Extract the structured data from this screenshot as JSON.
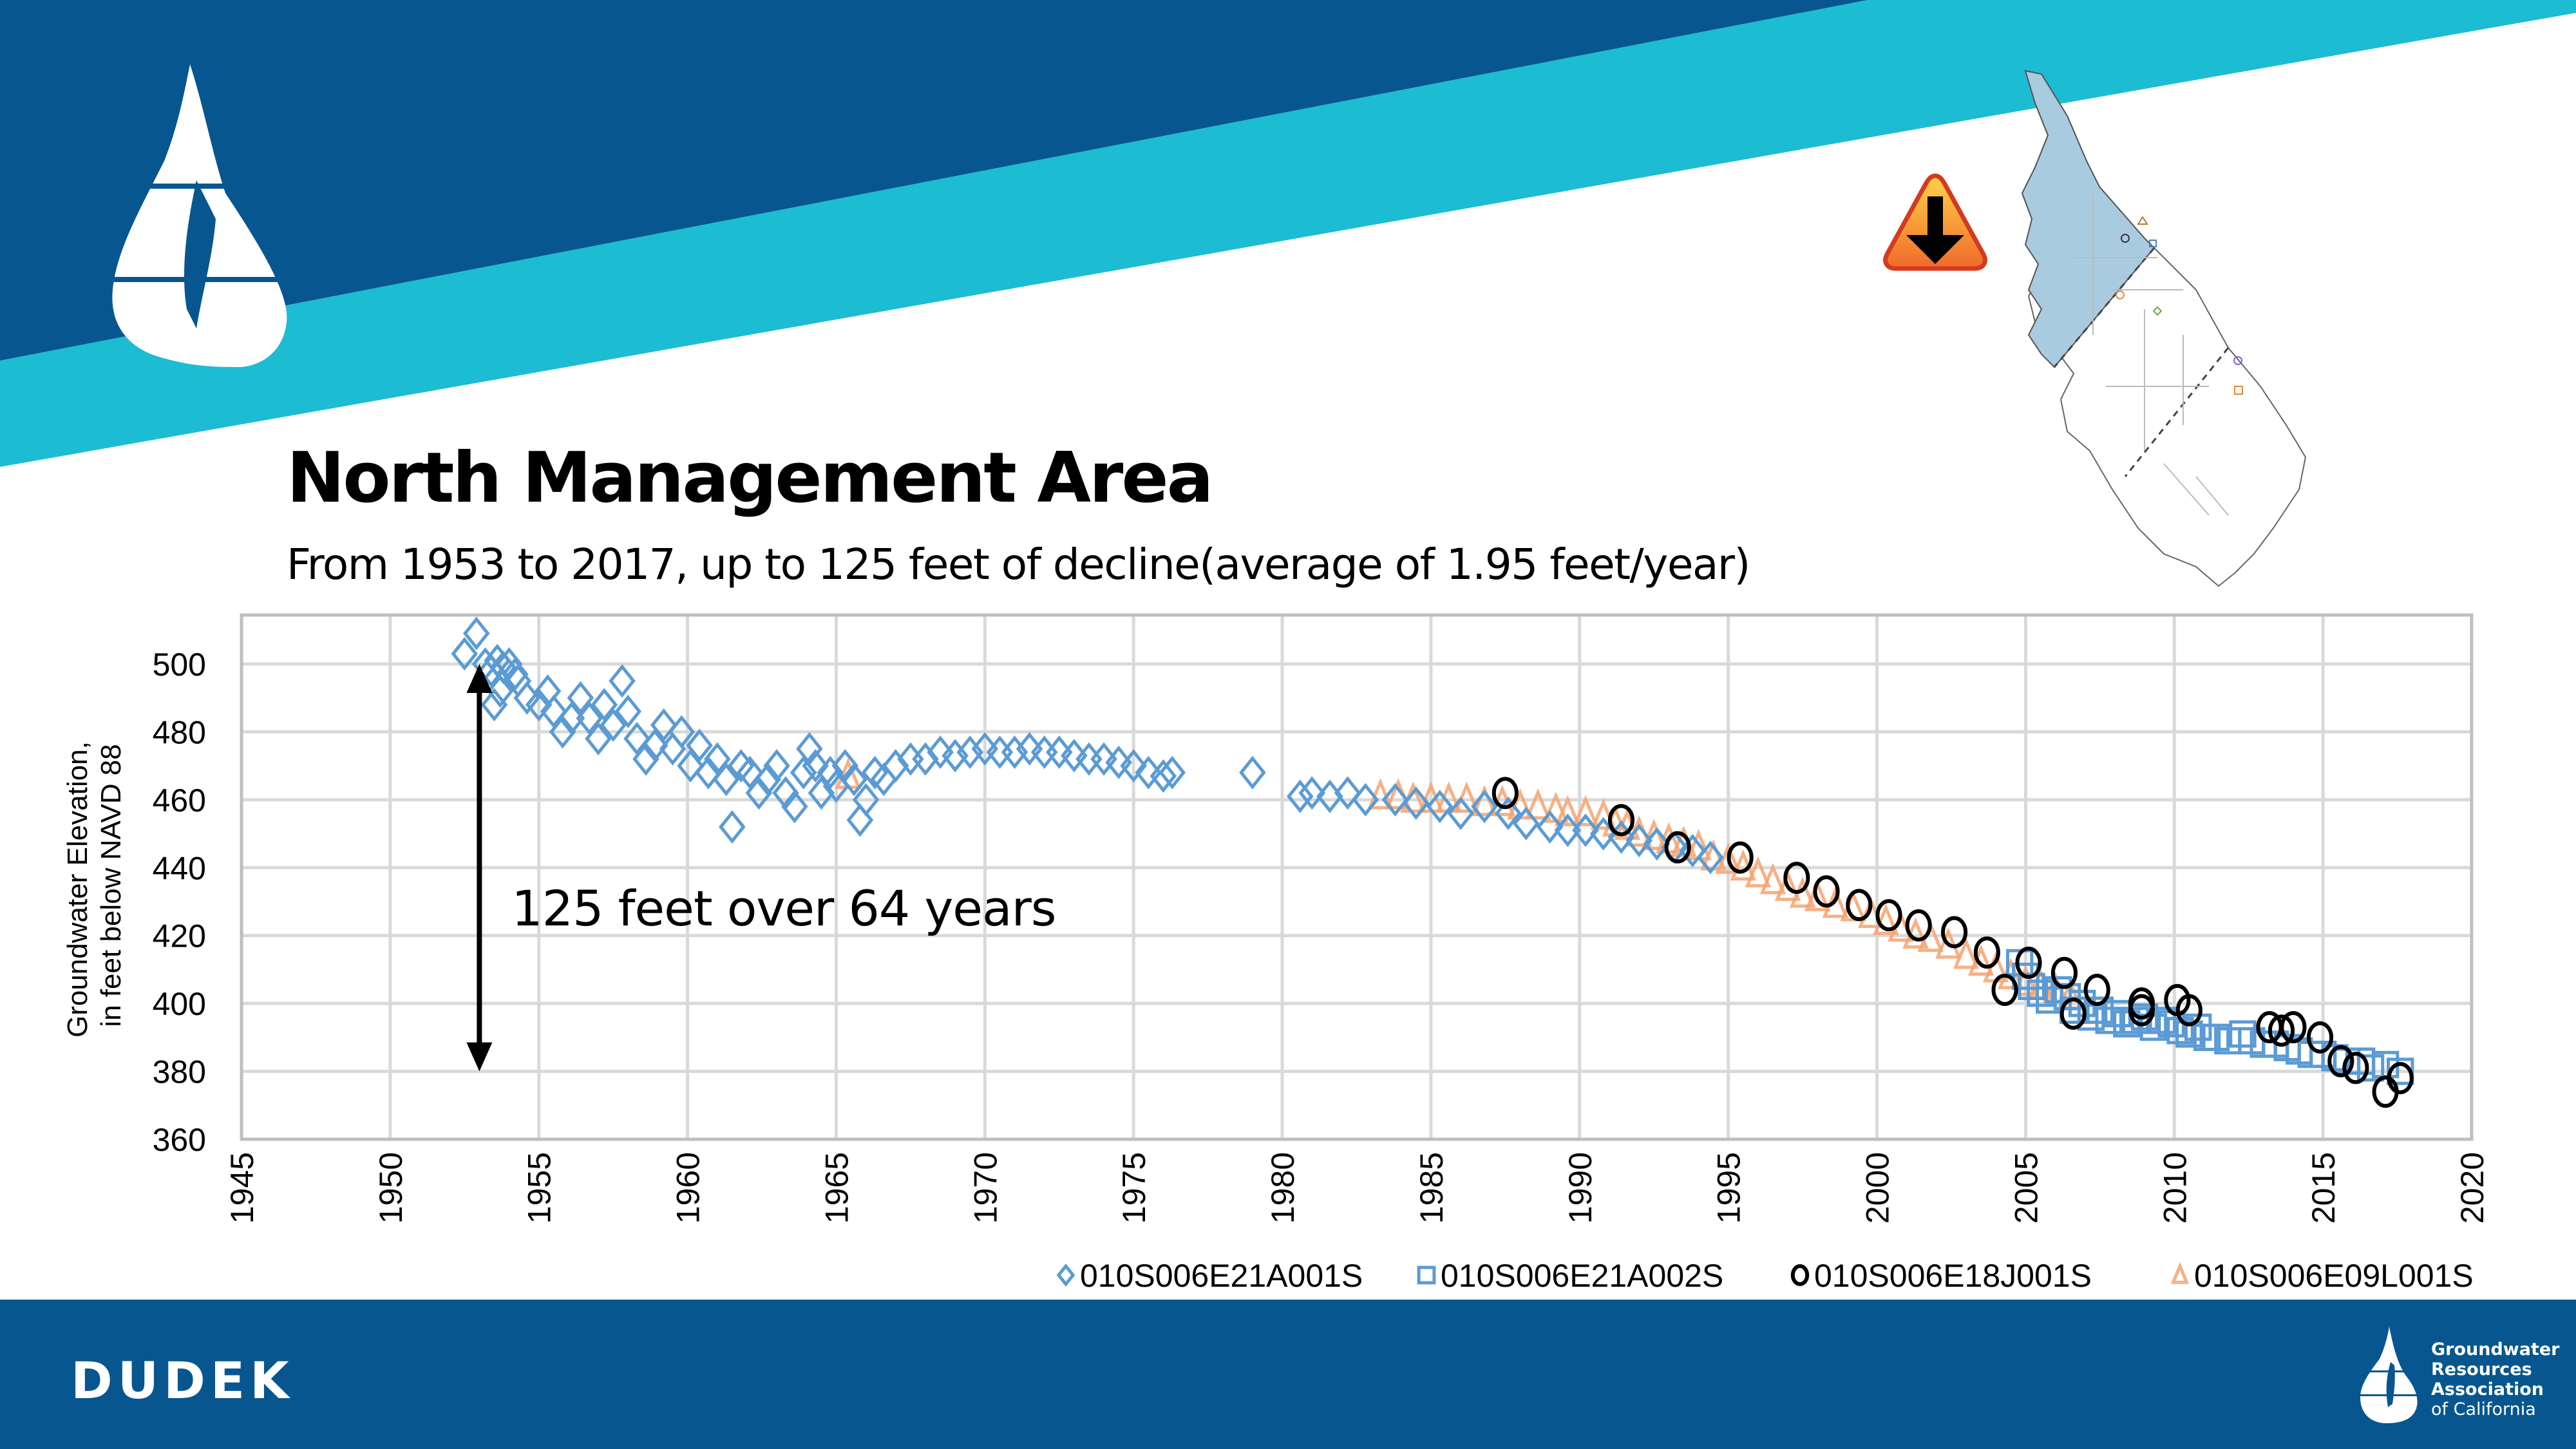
{
  "slide": {
    "title": "North Management Area",
    "subtitle": "From 1953 to 2017, up to 125 feet of decline(average of 1.95 feet/year)",
    "footer_brand": "DUDEK",
    "partner_logo_lines": [
      "Groundwater",
      "Resources",
      "Association"
    ],
    "partner_logo_tagline": "of California",
    "icons": {
      "logo": "water-drop-logo-icon",
      "warning": "warning-down-arrow-icon",
      "map": "management-area-map"
    },
    "colors": {
      "banner_dark": "#07568f",
      "banner_light": "#1cbcd3",
      "series_blue": "#5b9bd5",
      "series_orange": "#f4a370",
      "series_black": "#000000",
      "map_fill": "#a9cbe0",
      "grid": "#d9d9d9"
    }
  },
  "chart_data": {
    "type": "scatter",
    "title": "",
    "xlabel": "",
    "ylabel": "Groundwater Elevation, in feet below NAVD 88",
    "ylabel_lines": [
      "Groundwater Elevation,",
      "in feet below NAVD 88"
    ],
    "xlim": [
      1945,
      2020
    ],
    "ylim": [
      360,
      515
    ],
    "x_ticks": [
      "1945",
      "1950",
      "1955",
      "1960",
      "1965",
      "1970",
      "1975",
      "1980",
      "1985",
      "1990",
      "1995",
      "2000",
      "2005",
      "2010",
      "2015",
      "2020"
    ],
    "y_ticks": [
      "360",
      "380",
      "400",
      "420",
      "440",
      "460",
      "480",
      "500"
    ],
    "grid": true,
    "legend_position": "bottom-right",
    "annotation": {
      "text": "125 feet over 64 years",
      "arrow_x": 1953,
      "arrow_from": 500,
      "arrow_to": 380
    },
    "series": [
      {
        "name": "010S006E21A001S",
        "marker": "diamond",
        "color": "#5b9bd5",
        "points": [
          [
            1952.5,
            503
          ],
          [
            1952.9,
            509
          ],
          [
            1953.2,
            500
          ],
          [
            1953.4,
            498
          ],
          [
            1953.6,
            501
          ],
          [
            1953.8,
            499
          ],
          [
            1954.0,
            500
          ],
          [
            1954.2,
            497
          ],
          [
            1953.5,
            488
          ],
          [
            1953.7,
            492
          ],
          [
            1954.3,
            495
          ],
          [
            1954.6,
            490
          ],
          [
            1955.0,
            488
          ],
          [
            1955.3,
            492
          ],
          [
            1955.5,
            486
          ],
          [
            1955.8,
            480
          ],
          [
            1956.1,
            484
          ],
          [
            1956.4,
            490
          ],
          [
            1956.7,
            484
          ],
          [
            1957.0,
            478
          ],
          [
            1957.2,
            488
          ],
          [
            1957.5,
            482
          ],
          [
            1957.8,
            495
          ],
          [
            1958.0,
            486
          ],
          [
            1958.3,
            478
          ],
          [
            1958.6,
            472
          ],
          [
            1958.9,
            476
          ],
          [
            1959.2,
            482
          ],
          [
            1959.5,
            475
          ],
          [
            1959.8,
            480
          ],
          [
            1960.1,
            470
          ],
          [
            1960.4,
            476
          ],
          [
            1960.7,
            468
          ],
          [
            1961.0,
            472
          ],
          [
            1961.3,
            466
          ],
          [
            1961.5,
            452
          ],
          [
            1961.8,
            470
          ],
          [
            1962.1,
            468
          ],
          [
            1962.4,
            462
          ],
          [
            1962.7,
            466
          ],
          [
            1963.0,
            470
          ],
          [
            1963.3,
            462
          ],
          [
            1963.6,
            458
          ],
          [
            1963.9,
            468
          ],
          [
            1964.1,
            475
          ],
          [
            1964.3,
            470
          ],
          [
            1964.5,
            462
          ],
          [
            1964.8,
            468
          ],
          [
            1965.0,
            464
          ],
          [
            1965.3,
            470
          ],
          [
            1965.6,
            466
          ],
          [
            1965.8,
            454
          ],
          [
            1966.0,
            460
          ],
          [
            1966.3,
            468
          ],
          [
            1966.6,
            466
          ],
          [
            1967.0,
            470
          ],
          [
            1967.5,
            472
          ],
          [
            1968.0,
            472
          ],
          [
            1968.5,
            474
          ],
          [
            1969.0,
            473
          ],
          [
            1969.5,
            474
          ],
          [
            1970.0,
            475
          ],
          [
            1970.5,
            474
          ],
          [
            1971.0,
            474
          ],
          [
            1971.5,
            475
          ],
          [
            1972.0,
            474
          ],
          [
            1972.5,
            474
          ],
          [
            1973.0,
            473
          ],
          [
            1973.5,
            472
          ],
          [
            1974.0,
            472
          ],
          [
            1974.5,
            471
          ],
          [
            1975.0,
            470
          ],
          [
            1975.5,
            468
          ],
          [
            1976.0,
            467
          ],
          [
            1976.3,
            468
          ],
          [
            1979.0,
            468
          ],
          [
            1980.6,
            461
          ],
          [
            1981.0,
            462
          ],
          [
            1981.6,
            461
          ],
          [
            1982.2,
            462
          ],
          [
            1982.8,
            460
          ],
          [
            1983.8,
            460
          ],
          [
            1984.5,
            459
          ],
          [
            1985.3,
            458
          ],
          [
            1986.0,
            456
          ],
          [
            1986.8,
            458
          ],
          [
            1987.6,
            456
          ],
          [
            1988.2,
            453
          ],
          [
            1989.0,
            452
          ],
          [
            1989.6,
            451
          ],
          [
            1990.2,
            451
          ],
          [
            1990.8,
            450
          ],
          [
            1991.4,
            449
          ],
          [
            1992.0,
            448
          ],
          [
            1992.6,
            447
          ],
          [
            1993.2,
            446
          ],
          [
            1993.8,
            445
          ],
          [
            1994.4,
            443
          ]
        ]
      },
      {
        "name": "010S006E21A002S",
        "marker": "square",
        "color": "#5b9bd5",
        "points": [
          [
            2004.8,
            412
          ],
          [
            2005.0,
            408
          ],
          [
            2005.2,
            405
          ],
          [
            2005.5,
            403
          ],
          [
            2005.8,
            401
          ],
          [
            2006.1,
            404
          ],
          [
            2006.4,
            402
          ],
          [
            2006.6,
            398
          ],
          [
            2006.9,
            400
          ],
          [
            2007.2,
            396
          ],
          [
            2007.5,
            398
          ],
          [
            2007.8,
            395
          ],
          [
            2008.1,
            397
          ],
          [
            2008.4,
            394
          ],
          [
            2008.7,
            395
          ],
          [
            2009.0,
            396
          ],
          [
            2009.3,
            393
          ],
          [
            2009.6,
            395
          ],
          [
            2009.9,
            394
          ],
          [
            2010.2,
            392
          ],
          [
            2010.5,
            391
          ],
          [
            2010.8,
            393
          ],
          [
            2011.1,
            390
          ],
          [
            2011.4,
            390
          ],
          [
            2011.8,
            389
          ],
          [
            2012.3,
            391
          ],
          [
            2012.6,
            389
          ],
          [
            2013.0,
            388
          ],
          [
            2013.4,
            388
          ],
          [
            2013.8,
            387
          ],
          [
            2014.2,
            386
          ],
          [
            2014.6,
            385
          ],
          [
            2015.0,
            385
          ],
          [
            2015.4,
            384
          ],
          [
            2015.8,
            383
          ],
          [
            2016.3,
            383
          ],
          [
            2016.6,
            381
          ],
          [
            2017.1,
            382
          ],
          [
            2017.6,
            380
          ]
        ]
      },
      {
        "name": "010S006E18J001S",
        "marker": "circle",
        "color": "#000000",
        "points": [
          [
            1987.5,
            462
          ],
          [
            1991.4,
            454
          ],
          [
            1993.3,
            446
          ],
          [
            1995.4,
            443
          ],
          [
            1997.3,
            437
          ],
          [
            1998.3,
            433
          ],
          [
            1999.4,
            429
          ],
          [
            2000.4,
            426
          ],
          [
            2001.4,
            423
          ],
          [
            2002.6,
            421
          ],
          [
            2003.7,
            415
          ],
          [
            2004.3,
            404
          ],
          [
            2005.1,
            412
          ],
          [
            2006.3,
            409
          ],
          [
            2006.6,
            397
          ],
          [
            2007.4,
            404
          ],
          [
            2008.9,
            400
          ],
          [
            2008.9,
            398
          ],
          [
            2010.1,
            401
          ],
          [
            2010.5,
            398
          ],
          [
            2013.2,
            393
          ],
          [
            2013.6,
            392
          ],
          [
            2014.0,
            393
          ],
          [
            2014.9,
            390
          ],
          [
            2015.6,
            383
          ],
          [
            2016.1,
            381
          ],
          [
            2017.1,
            374
          ],
          [
            2017.6,
            378
          ]
        ]
      },
      {
        "name": "010S006E09L001S",
        "marker": "triangle",
        "color": "#f4a370",
        "points": [
          [
            1965.4,
            467
          ],
          [
            1983.3,
            461
          ],
          [
            1983.9,
            461
          ],
          [
            1984.4,
            460
          ],
          [
            1985.0,
            460
          ],
          [
            1985.6,
            460
          ],
          [
            1986.2,
            460
          ],
          [
            1986.8,
            459
          ],
          [
            1987.4,
            459
          ],
          [
            1988.0,
            458
          ],
          [
            1988.6,
            458
          ],
          [
            1989.2,
            457
          ],
          [
            1989.6,
            456
          ],
          [
            1990.2,
            456
          ],
          [
            1990.8,
            455
          ],
          [
            1991.2,
            453
          ],
          [
            1991.6,
            452
          ],
          [
            1992.0,
            450
          ],
          [
            1992.5,
            449
          ],
          [
            1993.0,
            448
          ],
          [
            1993.5,
            447
          ],
          [
            1994.0,
            446
          ],
          [
            1994.5,
            443
          ],
          [
            1995.0,
            442
          ],
          [
            1995.5,
            440
          ],
          [
            1996.0,
            438
          ],
          [
            1996.5,
            436
          ],
          [
            1997.0,
            434
          ],
          [
            1997.5,
            432
          ],
          [
            1998.0,
            431
          ],
          [
            1998.6,
            429
          ],
          [
            1999.2,
            428
          ],
          [
            1999.8,
            426
          ],
          [
            2000.3,
            424
          ],
          [
            2000.8,
            422
          ],
          [
            2001.3,
            420
          ],
          [
            2001.8,
            419
          ],
          [
            2002.4,
            417
          ],
          [
            2003.0,
            414
          ],
          [
            2003.5,
            412
          ],
          [
            2004.0,
            410
          ],
          [
            2004.5,
            408
          ],
          [
            2005.0,
            406
          ],
          [
            2005.5,
            405
          ],
          [
            2006.0,
            404
          ],
          [
            2006.5,
            402
          ]
        ]
      }
    ]
  }
}
